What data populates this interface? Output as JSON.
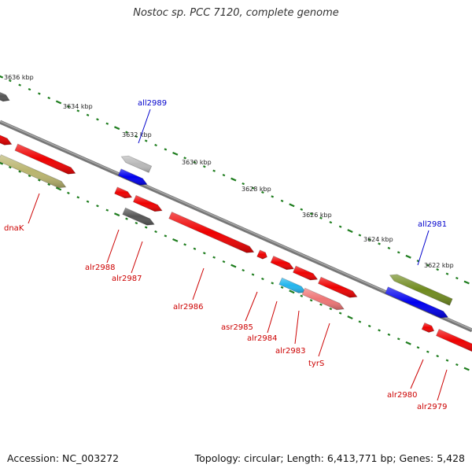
{
  "title": "Nostoc sp. PCC 7120, complete genome",
  "footer": {
    "accession": "Accession: NC_003272",
    "summary": "Topology: circular; Length: 6,413,771 bp; Genes: 5,428"
  },
  "colors": {
    "backbone": "#777777",
    "tick": "#1e7d1e",
    "forward_label": "#cc0000",
    "reverse_label": "#0000cc",
    "red_gene": "#ee0000",
    "olive_gene": "#b9b46e",
    "dark_gray_gene": "#555555",
    "light_gray_gene": "#b8b8b8",
    "blue_gene": "#0000ee",
    "cyan_gene": "#22b5ee",
    "pink_gene": "#ee7575",
    "dark_olive_gene": "#6f8a1e"
  },
  "ticks": [
    "3636 kbp",
    "3634 kbp",
    "3632 kbp",
    "3630 kbp",
    "3628 kbp",
    "3626 kbp",
    "3624 kbp",
    "3622 kbp"
  ],
  "genes": [
    {
      "label": "all2989",
      "strand": "reverse",
      "color": "light_gray_gene"
    },
    {
      "label": "dnaK",
      "strand": "forward",
      "color": "olive_gene"
    },
    {
      "label": "alr2988",
      "strand": "forward",
      "color": "red_gene"
    },
    {
      "label": "alr2987",
      "strand": "forward",
      "color": "dark_gray_gene"
    },
    {
      "label": "alr2986",
      "strand": "forward",
      "color": "red_gene"
    },
    {
      "label": "asr2985",
      "strand": "forward",
      "color": "red_gene"
    },
    {
      "label": "alr2984",
      "strand": "forward",
      "color": "red_gene"
    },
    {
      "label": "alr2983",
      "strand": "forward",
      "color": "red_gene"
    },
    {
      "label": "tyrS",
      "strand": "forward",
      "color": "pink_gene"
    },
    {
      "label": "all2981",
      "strand": "reverse",
      "color": "dark_olive_gene"
    },
    {
      "label": "alr2980",
      "strand": "forward",
      "color": "red_gene"
    },
    {
      "label": "alr2979",
      "strand": "forward",
      "color": "red_gene"
    }
  ]
}
